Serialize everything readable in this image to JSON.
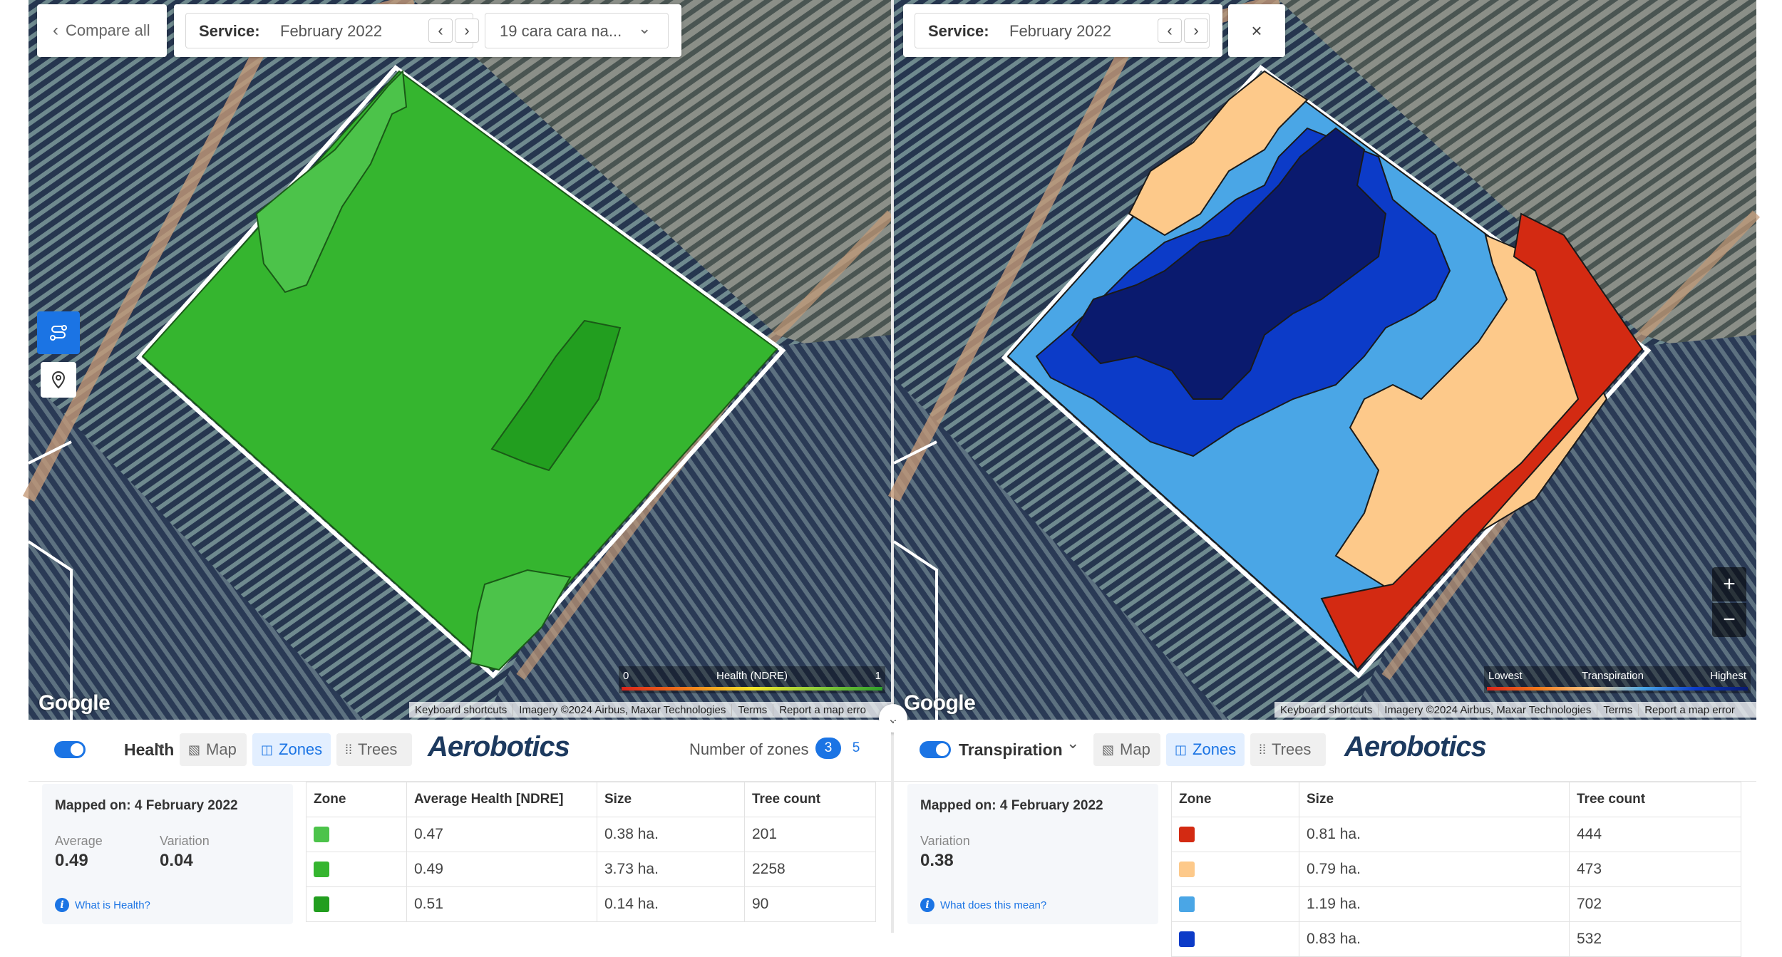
{
  "left": {
    "compare_all_label": "Compare all",
    "service_label": "Service:",
    "service_value": "February 2022",
    "block_select": "19 cara cara na...",
    "legend": {
      "min": "0",
      "title": "Health (NDRE)",
      "max": "1"
    },
    "layer_name": "Health",
    "view_tabs": {
      "map": "Map",
      "zones": "Zones",
      "trees": "Trees"
    },
    "brand": "Aerobotics",
    "zones_label": "Number of zones",
    "zone_options": [
      "3",
      "5"
    ],
    "mapped_on": "Mapped on: 4 February 2022",
    "average_label": "Average",
    "average_value": "0.49",
    "variation_label": "Variation",
    "variation_value": "0.04",
    "help_link": "What is Health?",
    "table": {
      "headers": [
        "Zone",
        "Average Health [NDRE]",
        "Size",
        "Tree count"
      ],
      "rows": [
        {
          "color": "#4cc34a",
          "avg": "0.47",
          "size": "0.38 ha.",
          "count": "201"
        },
        {
          "color": "#35b52f",
          "avg": "0.49",
          "size": "3.73 ha.",
          "count": "2258"
        },
        {
          "color": "#229e1f",
          "avg": "0.51",
          "size": "0.14 ha.",
          "count": "90"
        }
      ]
    }
  },
  "right": {
    "service_label": "Service:",
    "service_value": "February 2022",
    "legend": {
      "min": "Lowest",
      "title": "Transpiration",
      "max": "Highest"
    },
    "layer_name": "Transpiration",
    "view_tabs": {
      "map": "Map",
      "zones": "Zones",
      "trees": "Trees"
    },
    "brand": "Aerobotics",
    "mapped_on": "Mapped on: 4 February 2022",
    "variation_label": "Variation",
    "variation_value": "0.38",
    "help_link": "What does this mean?",
    "table": {
      "headers": [
        "Zone",
        "Size",
        "Tree count"
      ],
      "rows": [
        {
          "color": "#d32a12",
          "size": "0.81 ha.",
          "count": "444"
        },
        {
          "color": "#fdc98a",
          "size": "0.79 ha.",
          "count": "473"
        },
        {
          "color": "#4aa6e6",
          "size": "1.19 ha.",
          "count": "702"
        },
        {
          "color": "#0c3bc8",
          "size": "0.83 ha.",
          "count": "532"
        }
      ]
    }
  },
  "map_attribution": {
    "google": "Google",
    "shortcuts": "Keyboard shortcuts",
    "imagery": "Imagery ©2024 Airbus, Maxar Technologies",
    "terms": "Terms",
    "report": "Report a map error",
    "report_truncated": "Report a map erro"
  },
  "icons": {
    "back": "chevron-left-icon",
    "prev": "chevron-left-icon",
    "next": "chevron-right-icon",
    "dropdown": "chevron-down-icon",
    "close": "close-icon",
    "zoom_in": "plus-icon",
    "zoom_out": "minus-icon",
    "route": "route-icon",
    "pin": "location-pin-icon",
    "collapse": "chevron-double-down-icon"
  }
}
